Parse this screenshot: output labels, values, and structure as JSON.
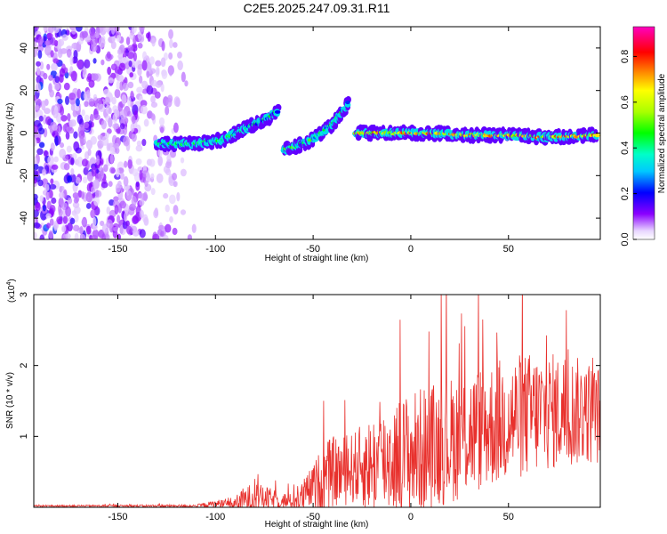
{
  "title": "C2E5.2025.247.09.31.R11",
  "chart_data": [
    {
      "type": "heatmap",
      "name": "spectrogram",
      "xlabel": "Height of straight line (km)",
      "ylabel": "Frequency (Hz)",
      "xlim": [
        -193,
        97
      ],
      "ylim": [
        -50,
        50
      ],
      "xticks": [
        -150,
        -100,
        -50,
        0,
        50
      ],
      "yticks": [
        -40,
        -20,
        0,
        20,
        40
      ],
      "colorbar": {
        "label": "Normalized spectral amplitude",
        "range": [
          0.0,
          0.93
        ],
        "ticks": [
          0.0,
          0.2,
          0.4,
          0.6,
          0.8
        ],
        "tick_labels": [
          "0.0",
          "0.2",
          "0.4",
          "0.6",
          "0.8"
        ]
      },
      "features": [
        {
          "segment": "noise",
          "x_range": [
            -193,
            -110
          ],
          "freq_range": [
            -50,
            50
          ],
          "amplitude": 0.15
        },
        {
          "segment": "rising-track-1",
          "x": [
            -130,
            -110,
            -95,
            -85,
            -75,
            -68
          ],
          "freq": [
            -5,
            -5,
            -3,
            2,
            6,
            10
          ],
          "amplitude": 0.35
        },
        {
          "segment": "rising-track-2",
          "x": [
            -65,
            -55,
            -45,
            -38,
            -32
          ],
          "freq": [
            -8,
            -5,
            0,
            6,
            14
          ],
          "amplitude": 0.4
        },
        {
          "segment": "steady-track",
          "x": [
            -28,
            -10,
            10,
            30,
            50,
            70,
            95
          ],
          "freq": [
            0,
            0,
            0,
            -1,
            -1,
            -2,
            -1
          ],
          "amplitude": 0.7
        }
      ]
    },
    {
      "type": "line",
      "name": "snr",
      "xlabel": "Height of straight line (km)",
      "ylabel": "SNR (10 * v/v)",
      "y_multiplier": "(x10",
      "y_multiplier_exp": "4",
      "y_multiplier_close": ")",
      "xlim": [
        -193,
        97
      ],
      "ylim": [
        0,
        3
      ],
      "xticks": [
        -150,
        -100,
        -50,
        0,
        50
      ],
      "yticks": [
        1,
        2,
        3
      ],
      "color": "#e8302c",
      "envelope": {
        "x": [
          -193,
          -110,
          -100,
          -90,
          -85,
          -80,
          -70,
          -60,
          -55,
          -50,
          -45,
          -40,
          -35,
          -30,
          -20,
          -10,
          0,
          10,
          20,
          30,
          40,
          50,
          60,
          70,
          80,
          90,
          97
        ],
        "baseline": [
          0.02,
          0.02,
          0.05,
          0.05,
          0.1,
          0.15,
          0.1,
          0.08,
          0.15,
          0.3,
          0.4,
          0.5,
          0.5,
          0.55,
          0.6,
          0.7,
          0.75,
          0.85,
          0.95,
          1.05,
          1.15,
          1.25,
          1.3,
          1.35,
          1.35,
          1.35,
          1.3
        ],
        "amplitude": [
          0.01,
          0.02,
          0.05,
          0.1,
          0.2,
          0.2,
          0.15,
          0.1,
          0.25,
          0.3,
          0.5,
          0.5,
          0.5,
          0.5,
          0.7,
          0.8,
          0.9,
          0.9,
          0.9,
          0.9,
          0.9,
          0.9,
          0.9,
          0.85,
          0.8,
          0.75,
          0.7
        ]
      }
    }
  ],
  "colors": {
    "line": "#e8302c",
    "background": "#ffffff",
    "axes": "#000000"
  }
}
